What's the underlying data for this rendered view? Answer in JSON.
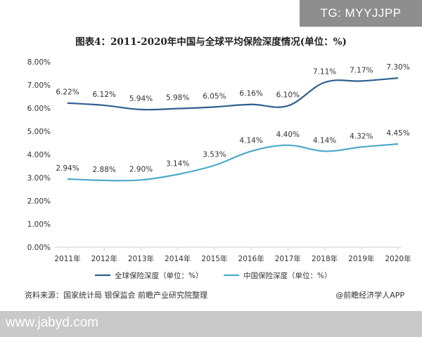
{
  "badge": "TG: MYYJJPP",
  "title": "图表4：2011-2020年中国与全球平均保险深度情况(单位：%)",
  "source": "资料来源：国家统计局 银保监会 前瞻产业研究院整理",
  "attribution": "@前瞻经济学人APP",
  "footer_url": "www.jabyd.com",
  "chart_data": {
    "type": "line",
    "title": "图表4：2011-2020年中国与全球平均保险深度情况(单位：%)",
    "categories": [
      "2011年",
      "2012年",
      "2013年",
      "2014年",
      "2015年",
      "2016年",
      "2017年",
      "2018年",
      "2019年",
      "2020年"
    ],
    "ylim": [
      0,
      8
    ],
    "yticks": [
      "0.00%",
      "1.00%",
      "2.00%",
      "3.00%",
      "4.00%",
      "5.00%",
      "6.00%",
      "7.00%",
      "8.00%"
    ],
    "legend_position": "bottom",
    "grid": false,
    "series": [
      {
        "name": "全球保险深度（单位：%）",
        "color": "#2e5f8e",
        "values": [
          6.22,
          6.12,
          5.94,
          5.98,
          6.05,
          6.16,
          6.1,
          7.11,
          7.17,
          7.3
        ],
        "labels": [
          "6.22%",
          "6.12%",
          "5.94%",
          "5.98%",
          "6.05%",
          "6.16%",
          "6.10%",
          "7.11%",
          "7.17%",
          "7.30%"
        ]
      },
      {
        "name": "中国保险深度（单位：%）",
        "color": "#4ea9c9",
        "values": [
          2.94,
          2.88,
          2.9,
          3.14,
          3.53,
          4.14,
          4.4,
          4.14,
          4.32,
          4.45
        ],
        "labels": [
          "2.94%",
          "2.88%",
          "2.90%",
          "3.14%",
          "3.53%",
          "4.14%",
          "4.40%",
          "4.14%",
          "4.32%",
          "4.45%"
        ]
      }
    ]
  }
}
